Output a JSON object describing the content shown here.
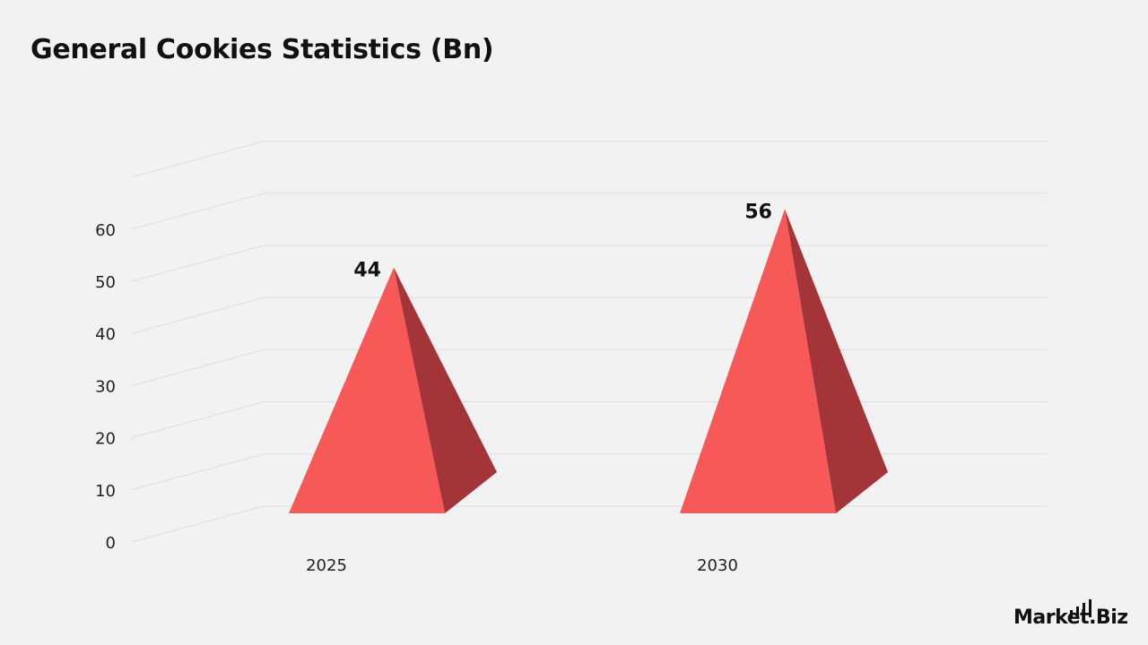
{
  "title": "General Cookies Statistics (Bn)",
  "brand": {
    "name_prefix": "Market",
    "name_suffix": ".Biz"
  },
  "colors": {
    "face": "#f75959",
    "side": "#a33538",
    "grid": "#dcdcdc",
    "background": "#f2f2f2"
  },
  "chart_data": {
    "type": "bar",
    "style": "3d-pyramid",
    "title": "General Cookies Statistics (Bn)",
    "categories": [
      "2025",
      "2030"
    ],
    "values": [
      44,
      56
    ],
    "data_labels": [
      "44",
      "56"
    ],
    "yticks": [
      "0",
      "10",
      "20",
      "30",
      "40",
      "50",
      "60"
    ],
    "ylim": [
      0,
      70
    ],
    "xlabel": "",
    "ylabel": "",
    "grid": true,
    "legend": "none"
  }
}
